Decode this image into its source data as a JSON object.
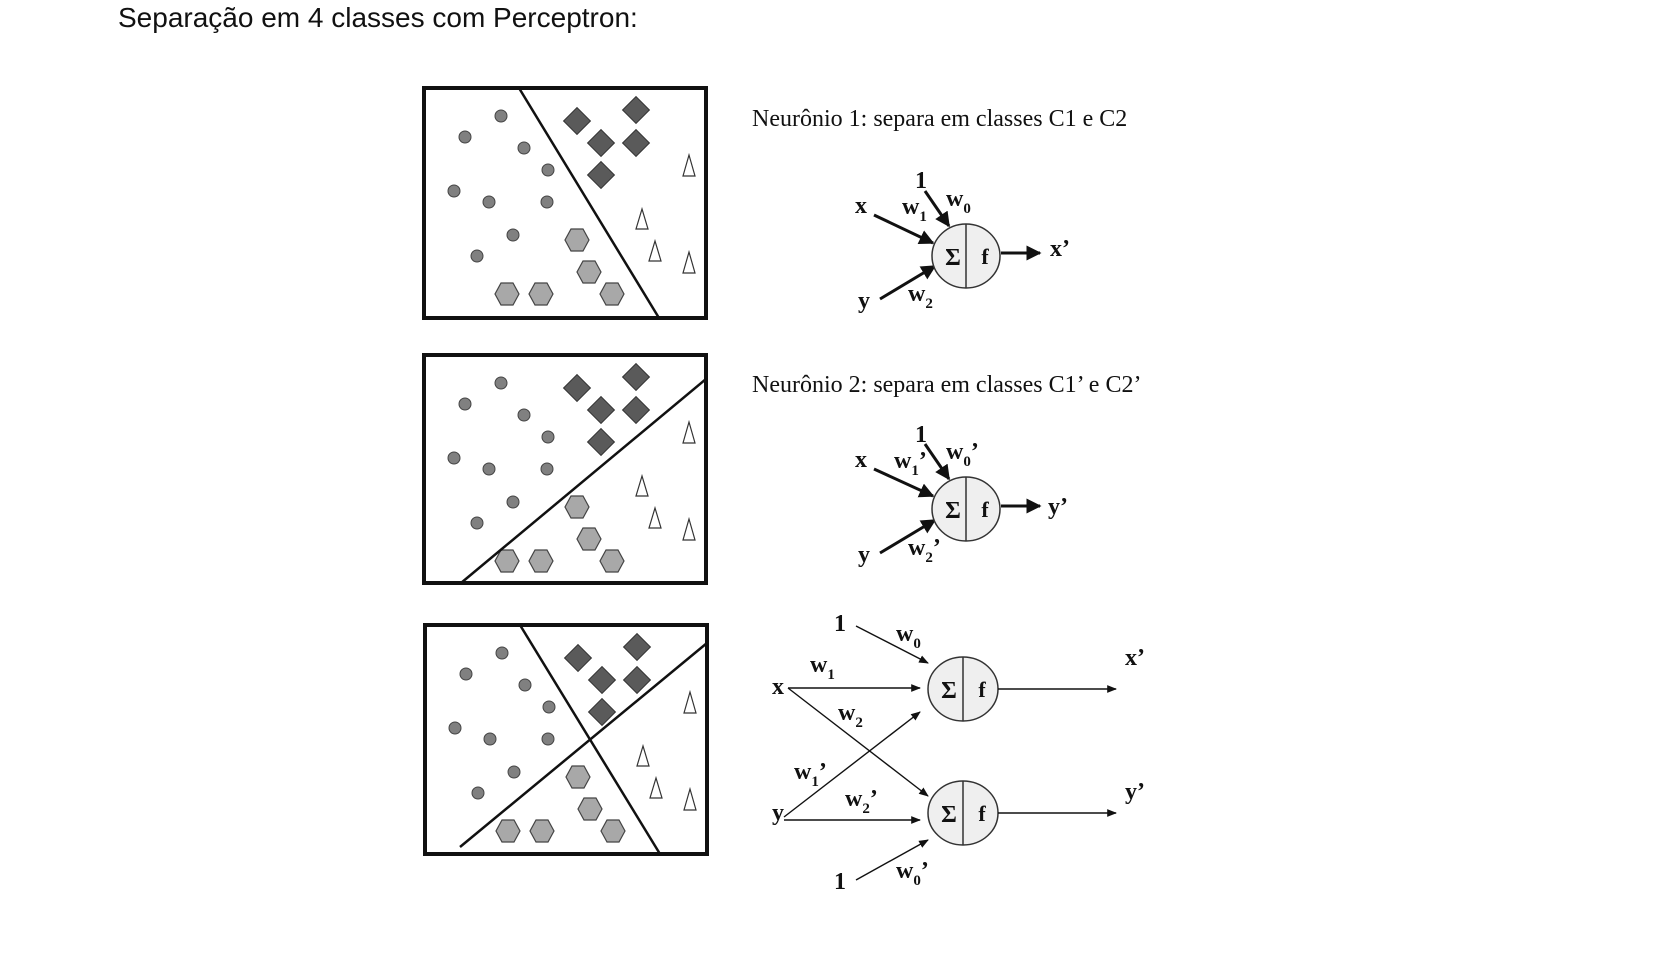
{
  "page": {
    "title": "Separação em 4 classes com Perceptron:"
  },
  "neurons": [
    {
      "caption": "Neurônio 1: separa em classes C1 e C2",
      "bias_input": "1",
      "input_x": "x",
      "input_y": "y",
      "w0": "w",
      "w0_sub": "0",
      "w0_prime": "",
      "w1": "w",
      "w1_sub": "1",
      "w1_prime": "",
      "w2": "w",
      "w2_sub": "2",
      "w2_prime": "",
      "sum": "Σ",
      "func": "f",
      "output": "x’"
    },
    {
      "caption": "Neurônio 2: separa em classes C1’ e C2’",
      "bias_input": "1",
      "input_x": "x",
      "input_y": "y",
      "w0": "w",
      "w0_sub": "0",
      "w0_prime": "’",
      "w1": "w",
      "w1_sub": "1",
      "w1_prime": "’",
      "w2": "w",
      "w2_sub": "2",
      "w2_prime": "’",
      "sum": "Σ",
      "func": "f",
      "output": "y’"
    }
  ],
  "network": {
    "bias_top": "1",
    "bias_bottom": "1",
    "input_x": "x",
    "input_y": "y",
    "w0": "w",
    "w0_sub": "0",
    "w1": "w",
    "w1_sub": "1",
    "w2": "w",
    "w2_sub": "2",
    "w1p": "w",
    "w1p_sub": "1",
    "w1p_prime": "’",
    "w2p": "w",
    "w2p_sub": "2",
    "w2p_prime": "’",
    "w0p": "w",
    "w0p_sub": "0",
    "w0p_prime": "’",
    "sum": "Σ",
    "func": "f",
    "output_top": "x’",
    "output_bottom": "y’"
  },
  "colors": {
    "circle_class": "#808080",
    "diamond_class": "#5a5a5a",
    "hexagon_class": "#a8a8a8",
    "triangle_class": "#ffffff",
    "neuron_fill": "#efefef"
  }
}
